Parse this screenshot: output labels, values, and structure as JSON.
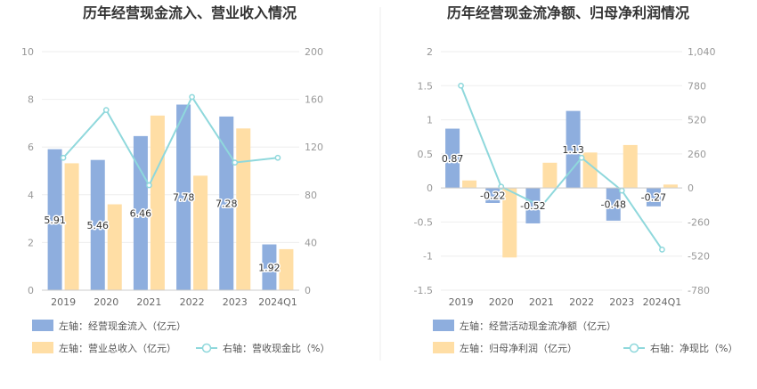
{
  "chart_data": [
    {
      "type": "bar",
      "title": "历年经营现金流入、营业收入情况",
      "categories": [
        "2019",
        "2020",
        "2021",
        "2022",
        "2023",
        "2024Q1"
      ],
      "left_axis": {
        "ylim": [
          0,
          10
        ],
        "ticks": [
          "0",
          "2",
          "4",
          "6",
          "8",
          "10"
        ]
      },
      "right_axis": {
        "ylim": [
          0,
          200
        ],
        "ticks": [
          "0",
          "40",
          "80",
          "120",
          "160",
          "200"
        ]
      },
      "series": [
        {
          "name": "左轴：经营现金流入（亿元）",
          "axis": "left",
          "kind": "bar",
          "color": "#8eaede",
          "values": [
            5.91,
            5.46,
            6.46,
            7.78,
            7.28,
            1.92
          ],
          "labels": [
            "5.91",
            "5.46",
            "6.46",
            "7.78",
            "7.28",
            "1.92"
          ]
        },
        {
          "name": "左轴：营业总收入（亿元）",
          "axis": "left",
          "kind": "bar",
          "color": "#ffdea5",
          "values": [
            5.32,
            3.6,
            7.32,
            4.8,
            6.78,
            1.72
          ]
        },
        {
          "name": "右轴：营收现金比（%）",
          "axis": "right",
          "kind": "line",
          "color": "#8fd8dc",
          "values": [
            111,
            151,
            88,
            162,
            107,
            111
          ]
        }
      ]
    },
    {
      "type": "bar",
      "title": "历年经营现金流净额、归母净利润情况",
      "categories": [
        "2019",
        "2020",
        "2021",
        "2022",
        "2023",
        "2024Q1"
      ],
      "left_axis": {
        "ylim": [
          -1.5,
          2
        ],
        "ticks": [
          "-1.5",
          "-1",
          "-0.5",
          "0",
          "0.5",
          "1",
          "1.5",
          "2"
        ]
      },
      "right_axis": {
        "ylim": [
          -780,
          1040
        ],
        "ticks": [
          "-780",
          "-520",
          "-260",
          "0",
          "260",
          "520",
          "780",
          "1,040"
        ]
      },
      "series": [
        {
          "name": "左轴：经营活动现金流净额（亿元）",
          "axis": "left",
          "kind": "bar",
          "color": "#8eaede",
          "values": [
            0.87,
            -0.22,
            -0.52,
            1.13,
            -0.48,
            -0.27
          ],
          "labels": [
            "0.87",
            "-0.22",
            "-0.52",
            "1.13",
            "-0.48",
            "-0.27"
          ]
        },
        {
          "name": "左轴：归母净利润（亿元）",
          "axis": "left",
          "kind": "bar",
          "color": "#ffdea5",
          "values": [
            0.11,
            -1.02,
            0.37,
            0.52,
            0.63,
            0.05
          ]
        },
        {
          "name": "右轴：净现比（%）",
          "axis": "right",
          "kind": "line",
          "color": "#8fd8dc",
          "values": [
            780,
            10,
            -140,
            230,
            -20,
            -470
          ]
        }
      ]
    }
  ]
}
